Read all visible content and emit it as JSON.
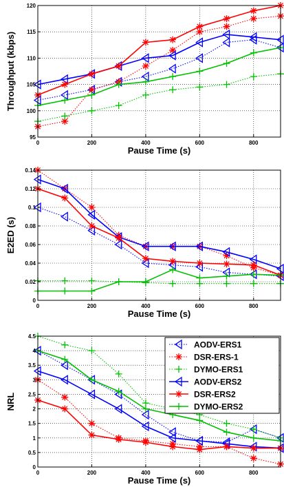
{
  "chart_data": [
    {
      "type": "line",
      "xlabel": "Pause Time (s)",
      "ylabel": "Throughput (kbps)",
      "xlim": [
        0,
        900
      ],
      "ylim": [
        95,
        120
      ],
      "xticks": [
        0,
        200,
        400,
        600,
        800
      ],
      "yticks": [
        95,
        100,
        105,
        110,
        115,
        120
      ],
      "grid": true,
      "series": [
        {
          "name": "AODV-ERS1",
          "color": "#0000ff",
          "style": "dotted",
          "marker": "triangle",
          "x": [
            0,
            100,
            200,
            300,
            400,
            500,
            600,
            700,
            800,
            900
          ],
          "y": [
            102,
            103,
            104,
            105.5,
            106.5,
            108,
            110,
            113,
            113.5,
            112
          ]
        },
        {
          "name": "DSR-ERS-1",
          "color": "#ff0000",
          "style": "dotted",
          "marker": "star",
          "x": [
            0,
            100,
            200,
            300,
            400,
            500,
            600,
            700,
            800,
            900
          ],
          "y": [
            97,
            98,
            104,
            105.5,
            108.5,
            111.5,
            115,
            116,
            117.5,
            118
          ]
        },
        {
          "name": "DYMO-ERS1",
          "color": "#00c000",
          "style": "dotted",
          "marker": "plus",
          "x": [
            0,
            100,
            200,
            300,
            400,
            500,
            600,
            700,
            800,
            900
          ],
          "y": [
            98,
            99,
            100,
            101,
            103,
            104,
            104.5,
            105,
            106.5,
            107
          ]
        },
        {
          "name": "AODV-ERS2",
          "color": "#0000ff",
          "style": "solid",
          "marker": "triangle",
          "x": [
            0,
            100,
            200,
            300,
            400,
            500,
            600,
            700,
            800,
            900
          ],
          "y": [
            105,
            106,
            107,
            108.5,
            110,
            110.5,
            113,
            114.5,
            114,
            113.5
          ]
        },
        {
          "name": "DSR-ERS2",
          "color": "#ff0000",
          "style": "solid",
          "marker": "star",
          "x": [
            0,
            100,
            200,
            300,
            400,
            500,
            600,
            700,
            800,
            900
          ],
          "y": [
            103,
            105,
            107,
            108.5,
            113,
            113.5,
            116,
            117.5,
            119,
            120
          ]
        },
        {
          "name": "DYMO-ERS2",
          "color": "#00c000",
          "style": "solid",
          "marker": "plus",
          "x": [
            0,
            100,
            200,
            300,
            400,
            500,
            600,
            700,
            800,
            900
          ],
          "y": [
            101,
            102,
            103,
            105,
            105.5,
            106.5,
            107.5,
            109,
            111,
            112
          ]
        }
      ]
    },
    {
      "type": "line",
      "xlabel": "Pause Time (s)",
      "ylabel": "E2ED (s)",
      "xlim": [
        0,
        900
      ],
      "ylim": [
        0,
        0.14
      ],
      "xticks": [
        0,
        200,
        400,
        600,
        800
      ],
      "yticks": [
        0,
        0.02,
        0.04,
        0.06,
        0.08,
        0.1,
        0.12,
        0.14
      ],
      "grid": true,
      "series": [
        {
          "name": "AODV-ERS1",
          "color": "#0000ff",
          "style": "dotted",
          "marker": "triangle",
          "x": [
            0,
            100,
            200,
            300,
            400,
            500,
            600,
            700,
            800,
            900
          ],
          "y": [
            0.1,
            0.09,
            0.075,
            0.06,
            0.04,
            0.038,
            0.036,
            0.03,
            0.028,
            0.026
          ]
        },
        {
          "name": "DSR-ERS-1",
          "color": "#ff0000",
          "style": "dotted",
          "marker": "star",
          "x": [
            0,
            100,
            200,
            300,
            400,
            500,
            600,
            700,
            800,
            900
          ],
          "y": [
            0.14,
            0.12,
            0.1,
            0.07,
            0.058,
            0.058,
            0.058,
            0.048,
            0.035,
            0.027
          ]
        },
        {
          "name": "DYMO-ERS1",
          "color": "#00c000",
          "style": "dotted",
          "marker": "plus",
          "x": [
            0,
            100,
            200,
            300,
            400,
            500,
            600,
            700,
            800,
            900
          ],
          "y": [
            0.021,
            0.021,
            0.021,
            0.02,
            0.019,
            0.018,
            0.018,
            0.018,
            0.018,
            0.018
          ]
        },
        {
          "name": "AODV-ERS2",
          "color": "#0000ff",
          "style": "solid",
          "marker": "triangle",
          "x": [
            0,
            100,
            200,
            300,
            400,
            500,
            600,
            700,
            800,
            900
          ],
          "y": [
            0.13,
            0.12,
            0.092,
            0.068,
            0.058,
            0.058,
            0.058,
            0.052,
            0.044,
            0.034
          ]
        },
        {
          "name": "DSR-ERS2",
          "color": "#ff0000",
          "style": "solid",
          "marker": "star",
          "x": [
            0,
            100,
            200,
            300,
            400,
            500,
            600,
            700,
            800,
            900
          ],
          "y": [
            0.12,
            0.11,
            0.08,
            0.067,
            0.045,
            0.042,
            0.04,
            0.039,
            0.038,
            0.027
          ]
        },
        {
          "name": "DYMO-ERS2",
          "color": "#00c000",
          "style": "solid",
          "marker": "plus",
          "x": [
            0,
            100,
            200,
            300,
            400,
            500,
            600,
            700,
            800,
            900
          ],
          "y": [
            0.01,
            0.01,
            0.01,
            0.02,
            0.02,
            0.033,
            0.024,
            0.026,
            0.028,
            0.027
          ]
        }
      ]
    },
    {
      "type": "line",
      "xlabel": "Pause Time (s)",
      "ylabel": "NRL",
      "xlim": [
        0,
        900
      ],
      "ylim": [
        0,
        4.5
      ],
      "xticks": [
        0,
        200,
        400,
        600,
        800
      ],
      "yticks": [
        0,
        0.5,
        1,
        1.5,
        2,
        2.5,
        3,
        3.5,
        4,
        4.5
      ],
      "grid": true,
      "legend": "top-right",
      "series": [
        {
          "name": "AODV-ERS1",
          "color": "#0000ff",
          "style": "dotted",
          "marker": "triangle",
          "x": [
            0,
            100,
            200,
            300,
            400,
            500,
            600,
            700,
            800,
            900
          ],
          "y": [
            4.0,
            3.5,
            3.0,
            2.5,
            1.8,
            1.2,
            0.9,
            0.85,
            1.3,
            1.0
          ]
        },
        {
          "name": "DSR-ERS-1",
          "color": "#ff0000",
          "style": "dotted",
          "marker": "star",
          "x": [
            0,
            100,
            200,
            300,
            400,
            500,
            600,
            700,
            800,
            900
          ],
          "y": [
            3.0,
            2.4,
            1.5,
            1.0,
            0.9,
            0.8,
            0.7,
            0.7,
            0.3,
            0.1
          ]
        },
        {
          "name": "DYMO-ERS1",
          "color": "#00c000",
          "style": "dotted",
          "marker": "plus",
          "x": [
            0,
            100,
            200,
            300,
            400,
            500,
            600,
            700,
            800,
            900
          ],
          "y": [
            4.5,
            4.2,
            4.0,
            3.2,
            2.2,
            2.0,
            1.8,
            1.5,
            1.3,
            1.0
          ]
        },
        {
          "name": "AODV-ERS2",
          "color": "#0000ff",
          "style": "solid",
          "marker": "triangle",
          "x": [
            0,
            100,
            200,
            300,
            400,
            500,
            600,
            700,
            800,
            900
          ],
          "y": [
            3.3,
            3.0,
            2.5,
            2.0,
            1.4,
            1.0,
            0.9,
            0.8,
            0.7,
            0.65
          ]
        },
        {
          "name": "DSR-ERS2",
          "color": "#ff0000",
          "style": "solid",
          "marker": "star",
          "x": [
            0,
            100,
            200,
            300,
            400,
            500,
            600,
            700,
            800,
            900
          ],
          "y": [
            2.3,
            2.0,
            1.1,
            0.95,
            0.85,
            0.7,
            0.6,
            0.7,
            0.65,
            0.65
          ]
        },
        {
          "name": "DYMO-ERS2",
          "color": "#00c000",
          "style": "solid",
          "marker": "plus",
          "x": [
            0,
            100,
            200,
            300,
            400,
            500,
            600,
            700,
            800,
            900
          ],
          "y": [
            4.0,
            3.7,
            3.0,
            2.6,
            2.0,
            1.8,
            1.6,
            1.2,
            1.0,
            0.9
          ]
        }
      ]
    }
  ]
}
